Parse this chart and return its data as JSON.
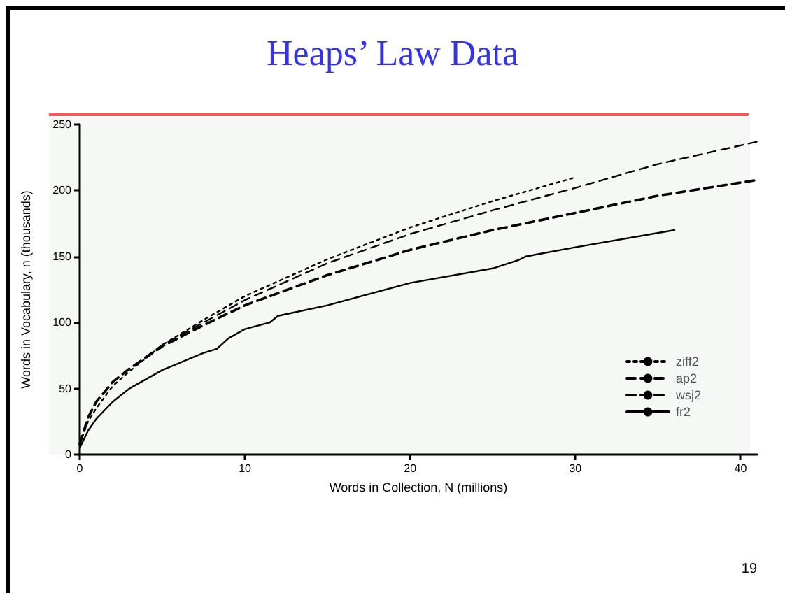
{
  "chart_data": {
    "type": "line",
    "title": "Heaps’ Law Data",
    "xlabel": "Words in Collection, N (millions)",
    "ylabel": "Words in Vocabulary, n (thousands)",
    "annotations": [
      "19"
    ],
    "xlim": [
      0,
      41
    ],
    "xticks": [
      0,
      10,
      20,
      30,
      40
    ],
    "ylim": [
      0,
      250
    ],
    "yticks": [
      0,
      50,
      100,
      150,
      200,
      250
    ],
    "grid": false,
    "legend": "bottom right",
    "marker": "none",
    "series": [
      {
        "name": "ziff2",
        "color": "#000000",
        "line_style": "dotted",
        "x": [
          0,
          0.5,
          1,
          2,
          3,
          5,
          7.5,
          10,
          15,
          20,
          25,
          30
        ],
        "values": [
          8,
          25,
          35,
          52,
          63,
          83,
          102,
          120,
          148,
          172,
          192,
          210
        ]
      },
      {
        "name": "ap2",
        "color": "#000000",
        "line_style": "dashed",
        "x": [
          0,
          0.5,
          1,
          2,
          3,
          5,
          7.5,
          10,
          15,
          20,
          25,
          30,
          35,
          41
        ],
        "values": [
          8,
          28,
          40,
          55,
          65,
          83,
          100,
          117,
          145,
          167,
          185,
          202,
          220,
          237
        ]
      },
      {
        "name": "wsj2",
        "color": "#000000",
        "line_style": "dashed",
        "x": [
          0,
          0.5,
          1,
          2,
          3,
          5,
          7.5,
          10,
          15,
          20,
          25,
          30,
          35,
          41
        ],
        "values": [
          8,
          28,
          40,
          55,
          65,
          82,
          98,
          113,
          136,
          155,
          170,
          183,
          196,
          208
        ]
      },
      {
        "name": "fr2",
        "color": "#000000",
        "line_style": "solid",
        "x": [
          0,
          0.5,
          1,
          2,
          3,
          5,
          7.5,
          8.3,
          9,
          10,
          11.5,
          12,
          15,
          20,
          25,
          26.5,
          27,
          30,
          36
        ],
        "values": [
          5,
          18,
          27,
          40,
          50,
          64,
          77,
          80,
          88,
          95,
          100,
          105,
          113,
          130,
          141,
          147,
          150,
          157,
          170
        ]
      }
    ]
  }
}
